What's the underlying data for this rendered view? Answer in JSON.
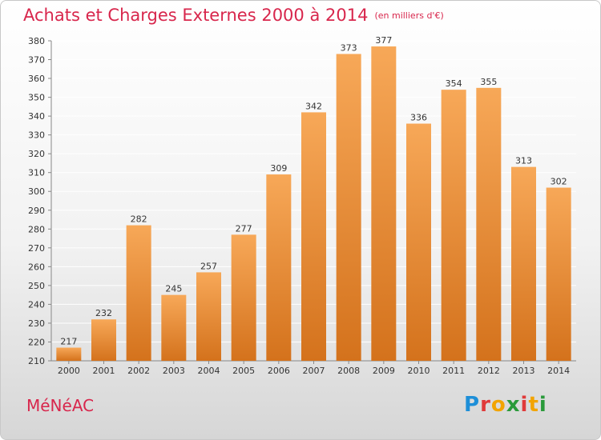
{
  "header": {
    "title": "Achats et Charges Externes 2000 à 2014",
    "subtitle": "(en milliers d'€)"
  },
  "footer": {
    "commune": "MéNéAC",
    "logo_letters": [
      "P",
      "r",
      "o",
      "x",
      "i",
      "t",
      "i"
    ]
  },
  "colors": {
    "accent": "#d8264c",
    "bar_top": "#f7a858",
    "bar_bottom": "#d4721c",
    "grid": "#ffffff"
  },
  "chart_data": {
    "type": "bar",
    "categories": [
      "2000",
      "2001",
      "2002",
      "2003",
      "2004",
      "2005",
      "2006",
      "2007",
      "2008",
      "2009",
      "2010",
      "2011",
      "2012",
      "2013",
      "2014"
    ],
    "values": [
      217,
      232,
      282,
      245,
      257,
      277,
      309,
      342,
      373,
      377,
      336,
      354,
      355,
      313,
      302
    ],
    "ylim": [
      210,
      380
    ],
    "yticks": [
      210,
      220,
      230,
      240,
      250,
      260,
      270,
      280,
      290,
      300,
      310,
      320,
      330,
      340,
      350,
      360,
      370,
      380
    ],
    "grid": true,
    "data_labels": true
  }
}
